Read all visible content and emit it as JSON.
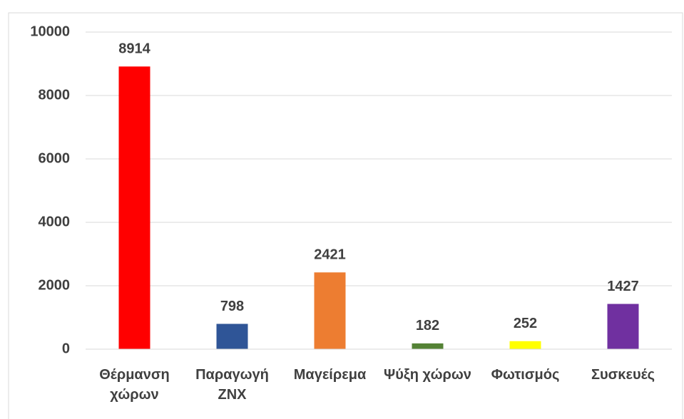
{
  "chart_data": {
    "type": "bar",
    "categories": [
      "Θέρμανση χώρων",
      "Παραγωγή ΖΝΧ",
      "Μαγείρεμα",
      "Ψύξη χώρων",
      "Φωτισμός",
      "Συσκευές"
    ],
    "values": [
      8914,
      798,
      2421,
      182,
      252,
      1427
    ],
    "colors": [
      "#ff0000",
      "#2f5597",
      "#ed7d31",
      "#548235",
      "#ffff00",
      "#7030a0"
    ],
    "ylim": [
      0,
      10000
    ],
    "yticks": [
      0,
      2000,
      4000,
      6000,
      8000,
      10000
    ],
    "grid": true,
    "data_labels": true
  }
}
